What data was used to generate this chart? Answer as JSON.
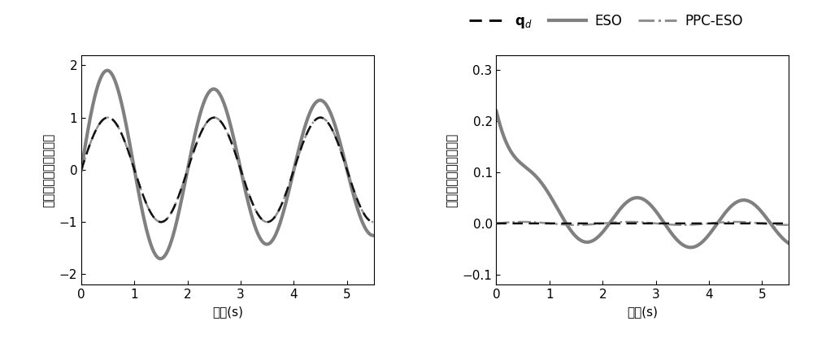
{
  "left_ylabel": "驱动模态位移跟踪轨迹",
  "right_ylabel": "检测模态位移跟踪轨迹",
  "xlabel": "时间(s)",
  "left_ylim": [
    -2.2,
    2.2
  ],
  "left_yticks": [
    -2,
    -1,
    0,
    1,
    2
  ],
  "right_ylim": [
    -0.12,
    0.33
  ],
  "right_yticks": [
    -0.1,
    0.0,
    0.1,
    0.2,
    0.3
  ],
  "xlim": [
    0,
    5.5
  ],
  "xticks": [
    0,
    1,
    2,
    3,
    4,
    5
  ],
  "color_qd": "#111111",
  "color_ESO": "#808080",
  "color_PPC_ESO": "#909090",
  "linewidth_qd": 1.8,
  "linewidth_ESO": 3.0,
  "linewidth_PPC_ESO": 1.8,
  "freq_drive": 0.5,
  "t_max": 5.5,
  "dt": 0.005
}
